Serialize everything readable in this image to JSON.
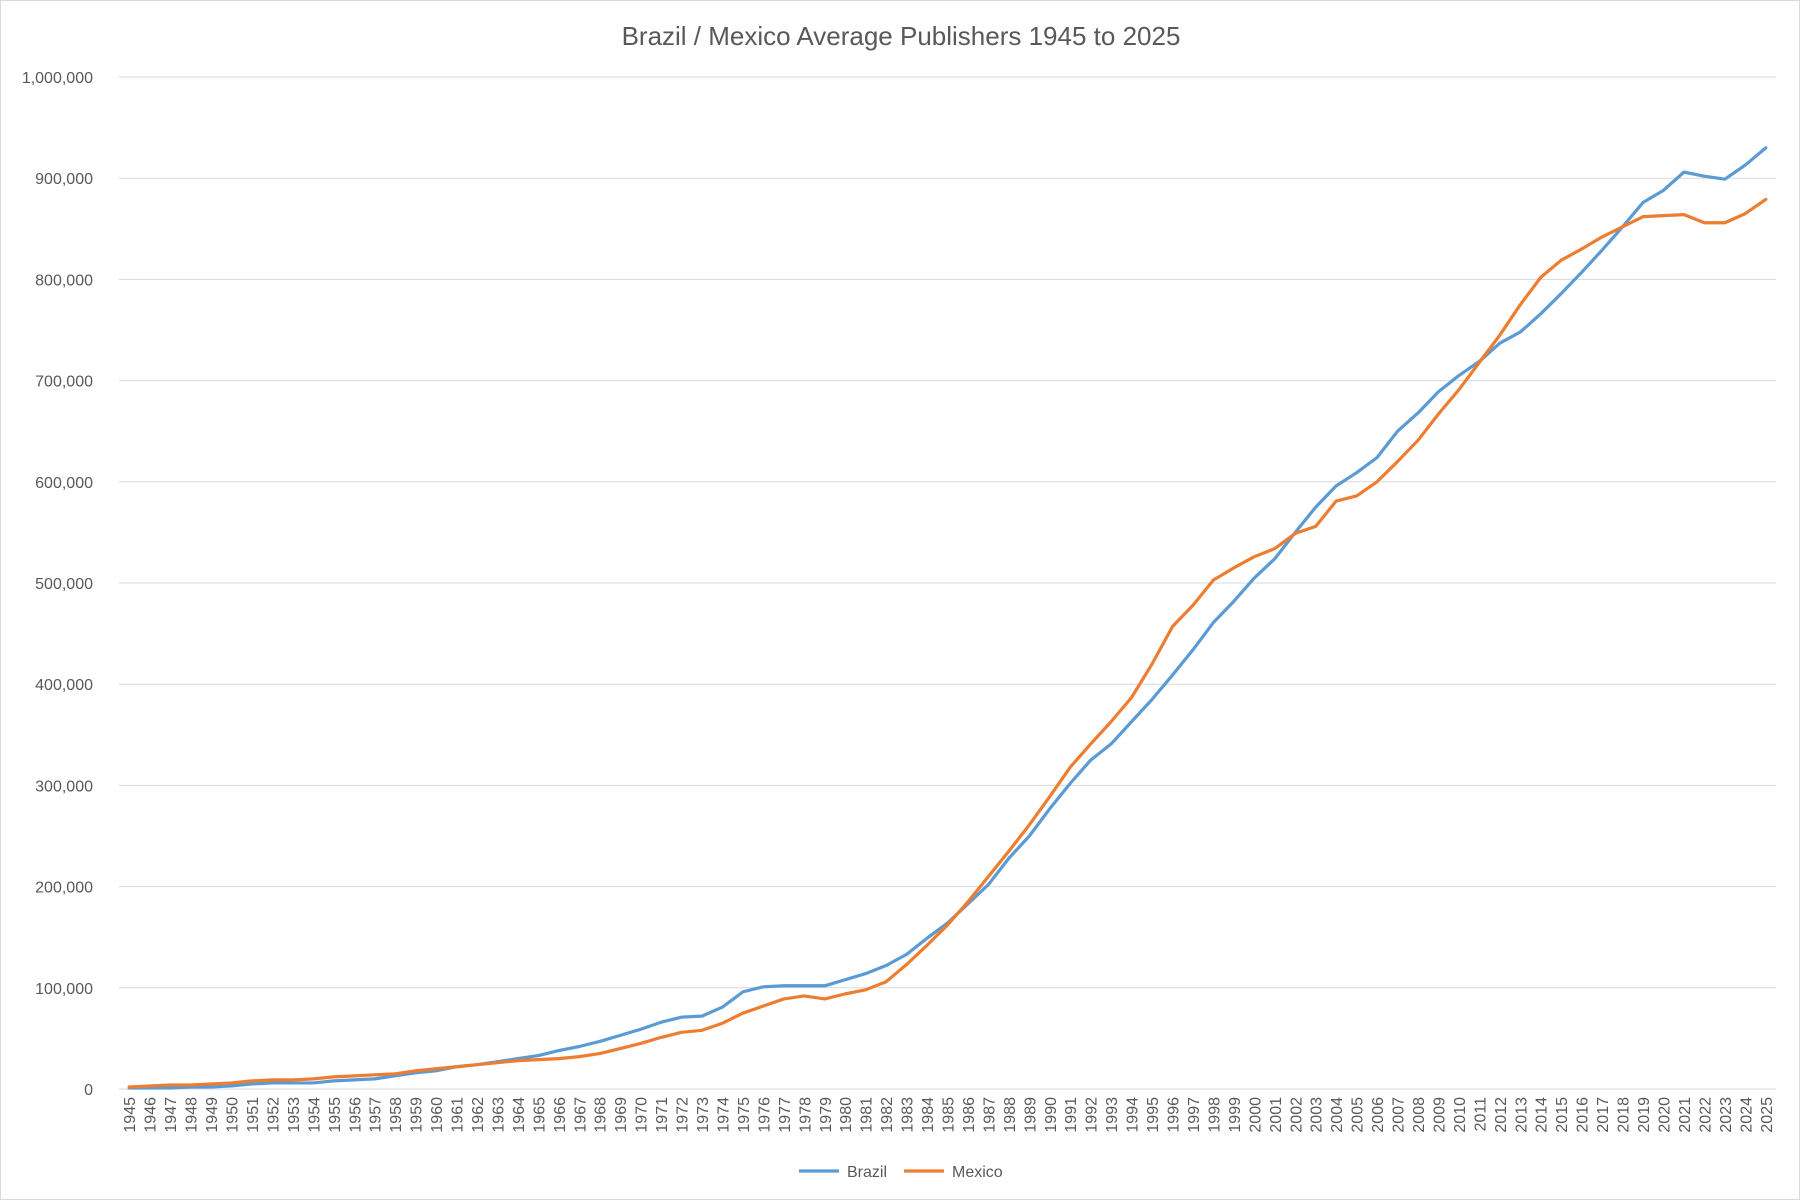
{
  "chart_data": {
    "type": "line",
    "title": "Brazil / Mexico Average Publishers 1945 to 2025",
    "xlabel": "",
    "ylabel": "",
    "ylim": [
      0,
      1000000
    ],
    "yticks": [
      0,
      100000,
      200000,
      300000,
      400000,
      500000,
      600000,
      700000,
      800000,
      900000,
      1000000
    ],
    "ytick_labels": [
      "0",
      "100,000",
      "200,000",
      "300,000",
      "400,000",
      "500,000",
      "600,000",
      "700,000",
      "800,000",
      "900,000",
      "1,000,000"
    ],
    "grid": true,
    "legend_position": "bottom",
    "x": [
      "1945",
      "1946",
      "1947",
      "1948",
      "1949",
      "1950",
      "1951",
      "1952",
      "1953",
      "1954",
      "1955",
      "1956",
      "1957",
      "1958",
      "1959",
      "1960",
      "1961",
      "1962",
      "1963",
      "1964",
      "1965",
      "1966",
      "1967",
      "1968",
      "1969",
      "1970",
      "1971",
      "1972",
      "1973",
      "1974",
      "1975",
      "1976",
      "1977",
      "1978",
      "1979",
      "1980",
      "1981",
      "1982",
      "1983",
      "1984",
      "1985",
      "1986",
      "1987",
      "1988",
      "1989",
      "1990",
      "1991",
      "1992",
      "1993",
      "1994",
      "1995",
      "1996",
      "1997",
      "1998",
      "1999",
      "2000",
      "2001",
      "2002",
      "2003",
      "2004",
      "2005",
      "2006",
      "2007",
      "2008",
      "2009",
      "2010",
      "2011",
      "2012",
      "2013",
      "2014",
      "2015",
      "2016",
      "2017",
      "2018",
      "2019",
      "2020",
      "2021",
      "2022",
      "2023",
      "2024",
      "2025"
    ],
    "series": [
      {
        "name": "Brazil",
        "color": "#5b9bd5",
        "values": [
          1000,
          1000,
          1000,
          2000,
          2000,
          3000,
          5000,
          6000,
          6000,
          6000,
          8000,
          9000,
          10000,
          13000,
          16000,
          18000,
          22000,
          24000,
          27000,
          30000,
          33000,
          38000,
          42000,
          47000,
          53000,
          59000,
          66000,
          71000,
          72000,
          81000,
          96000,
          101000,
          102000,
          102000,
          102000,
          108000,
          114000,
          122000,
          133000,
          149000,
          164000,
          183000,
          202000,
          228000,
          250000,
          277000,
          302000,
          325000,
          341000,
          363000,
          385000,
          409000,
          434000,
          461000,
          482000,
          505000,
          524000,
          550000,
          575000,
          596000,
          609000,
          624000,
          650000,
          668000,
          689000,
          705000,
          719000,
          737000,
          748000,
          766000,
          786000,
          807000,
          829000,
          852000,
          876000,
          888000,
          906000,
          902000,
          899000,
          913000,
          930000
        ]
      },
      {
        "name": "Mexico",
        "color": "#ed7d31",
        "values": [
          2000,
          3000,
          4000,
          4000,
          5000,
          6000,
          8000,
          9000,
          9000,
          10000,
          12000,
          13000,
          14000,
          15000,
          18000,
          20000,
          22000,
          24000,
          26000,
          28000,
          29000,
          30000,
          32000,
          35000,
          40000,
          45000,
          51000,
          56000,
          58000,
          65000,
          75000,
          82000,
          89000,
          92000,
          89000,
          94000,
          98000,
          106000,
          123000,
          142000,
          162000,
          185000,
          210000,
          235000,
          261000,
          289000,
          318000,
          341000,
          363000,
          387000,
          420000,
          457000,
          478000,
          503000,
          515000,
          526000,
          534000,
          549000,
          556000,
          581000,
          586000,
          600000,
          620000,
          641000,
          667000,
          691000,
          718000,
          745000,
          775000,
          802000,
          819000,
          830000,
          842000,
          852000,
          862000,
          863000,
          864000,
          856000,
          856000,
          865000,
          879000
        ]
      }
    ]
  }
}
